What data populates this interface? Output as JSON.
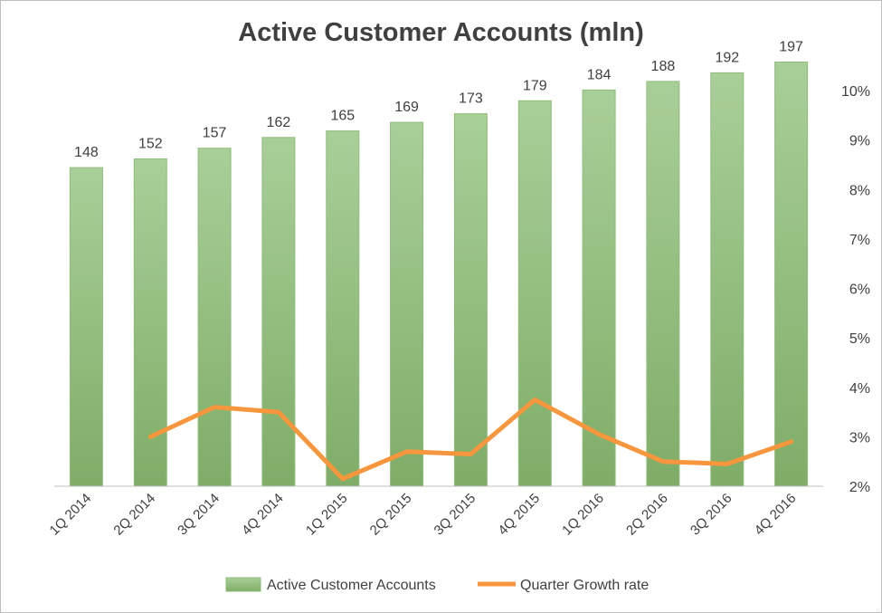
{
  "chart_data": {
    "type": "bar",
    "title": "Active Customer Accounts (mln)",
    "categories": [
      "1Q 2014",
      "2Q 2014",
      "3Q 2014",
      "4Q 2014",
      "1Q 2015",
      "2Q 2015",
      "3Q 2015",
      "4Q 2015",
      "1Q 2016",
      "2Q 2016",
      "3Q 2016",
      "4Q 2016"
    ],
    "series": [
      {
        "name": "Active Customer Accounts",
        "type": "bar",
        "axis": "left",
        "color": "#93c47d",
        "values": [
          148,
          152,
          157,
          162,
          165,
          169,
          173,
          179,
          184,
          188,
          192,
          197
        ],
        "labels": [
          "148",
          "152",
          "157",
          "162",
          "165",
          "169",
          "173",
          "179",
          "184",
          "188",
          "192",
          "197"
        ]
      },
      {
        "name": "Quarter Growth rate",
        "type": "line",
        "axis": "right",
        "color": "#f7963c",
        "values": [
          null,
          3.0,
          3.6,
          3.5,
          2.15,
          2.7,
          2.65,
          3.75,
          3.05,
          2.5,
          2.45,
          2.9
        ]
      }
    ],
    "left_ylim": [
      0,
      250
    ],
    "right_ylim": [
      2,
      10
    ],
    "right_ticks": [
      "2%",
      "3%",
      "4%",
      "5%",
      "6%",
      "7%",
      "8%",
      "9%",
      "10%"
    ],
    "legend_position": "bottom",
    "grid": false
  }
}
